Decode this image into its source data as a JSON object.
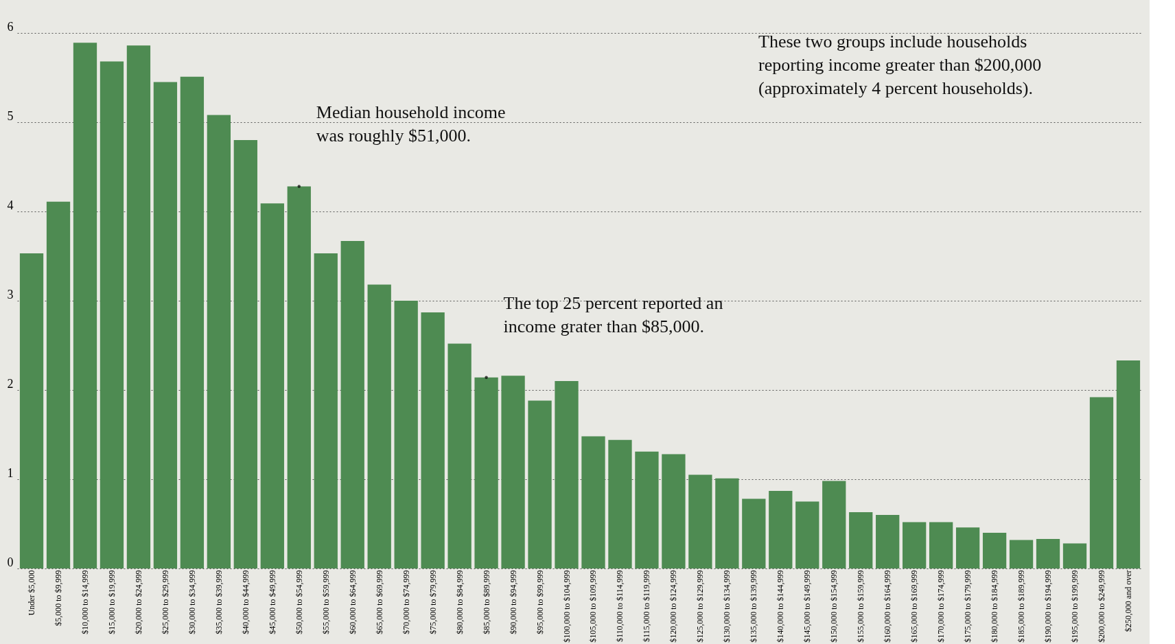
{
  "chart_data": {
    "type": "bar",
    "categories": [
      "Under $5,000",
      "$5,000 to $9,999",
      "$10,000 to $14,999",
      "$15,000 to $19,999",
      "$20,000 to $24,999",
      "$25,000 to $29,999",
      "$30,000 to $34,999",
      "$35,000 to $39,999",
      "$40,000 to $44,999",
      "$45,000 to $49,999",
      "$50,000 to $54,999",
      "$55,000 to $59,999",
      "$60,000 to $64,999",
      "$65,000 to $69,999",
      "$70,000 to $74,999",
      "$75,000 to $79,999",
      "$80,000 to $84,999",
      "$85,000 to $89,999",
      "$90,000 to $94,999",
      "$95,000 to $99,999",
      "$100,000 to $104,999",
      "$105,000 to $109,999",
      "$110,000 to $114,999",
      "$115,000 to $119,999",
      "$120,000 to $124,999",
      "$125,000 to $129,999",
      "$130,000 to $134,999",
      "$135,000 to $139,999",
      "$140,000 to $144,999",
      "$145,000 to $149,999",
      "$150,000 to $154,999",
      "$155,000 to $159,999",
      "$160,000 to $164,999",
      "$165,000 to $169,999",
      "$170,000 to $174,999",
      "$175,000 to $179,999",
      "$180,000 to $184,999",
      "$185,000 to $189,999",
      "$190,000 to $194,999",
      "$195,000 to $199,999",
      "$200,000 to $249,999",
      "$250,000 and over"
    ],
    "values": [
      3.53,
      4.11,
      5.89,
      5.68,
      5.86,
      5.45,
      5.51,
      5.08,
      4.8,
      4.09,
      4.28,
      3.53,
      3.67,
      3.18,
      3.0,
      2.87,
      2.52,
      2.14,
      2.16,
      1.88,
      2.1,
      1.48,
      1.44,
      1.31,
      1.28,
      1.05,
      1.01,
      0.78,
      0.87,
      0.75,
      0.98,
      0.63,
      0.6,
      0.52,
      0.52,
      0.46,
      0.4,
      0.32,
      0.33,
      0.28,
      1.92,
      2.33
    ],
    "color": "#4e8b52",
    "ylim": [
      0,
      6
    ],
    "yticks": [
      0,
      1,
      2,
      3,
      4,
      5,
      6
    ],
    "grid": "y",
    "annotations": [
      {
        "text": "Median household income\nwas roughly $51,000.",
        "x": "$50,000 to $54,999",
        "y": 4.28
      },
      {
        "text": "The top 25 percent reported an\nincome grater than $85,000.",
        "x": "$85,000 to $89,999",
        "y": 2.14
      },
      "These two groups include households\nreporting income greater than $200,000\n(approximately 4 percent households)."
    ]
  }
}
